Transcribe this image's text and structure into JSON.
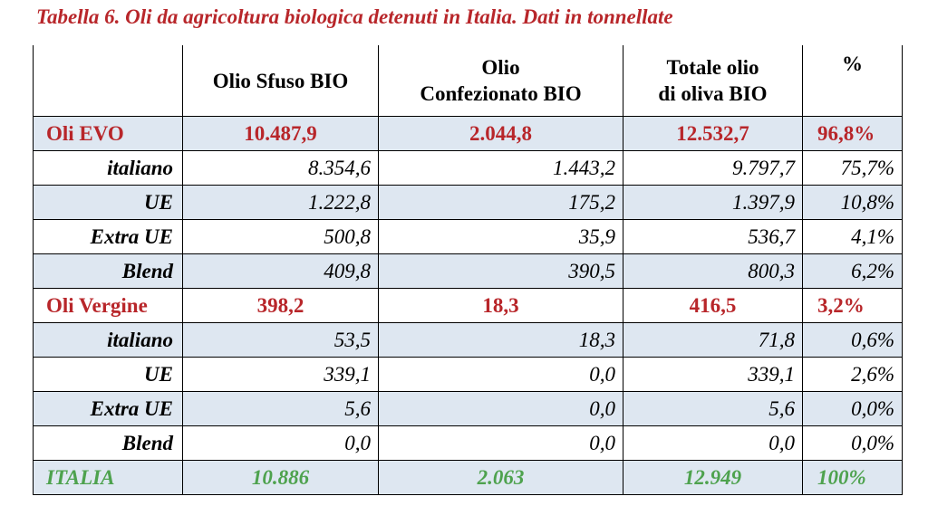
{
  "title": "Tabella 6. Oli da agricoltura biologica detenuti in Italia. Dati in tonnellate",
  "columns": {
    "c1": [
      "Olio Sfuso BIO"
    ],
    "c2": [
      "Olio",
      "Confezionato BIO"
    ],
    "c3": [
      "Totale olio",
      "di oliva BIO"
    ],
    "c4": [
      "%"
    ]
  },
  "rows": [
    {
      "kind": "group",
      "label": "Oli EVO",
      "sfuso": "10.487,9",
      "confezionato": "2.044,8",
      "totale": "12.532,7",
      "pct": "96,8%"
    },
    {
      "kind": "sub",
      "label": "italiano",
      "sfuso": "8.354,6",
      "confezionato": "1.443,2",
      "totale": "9.797,7",
      "pct": "75,7%"
    },
    {
      "kind": "sub",
      "label": "UE",
      "sfuso": "1.222,8",
      "confezionato": "175,2",
      "totale": "1.397,9",
      "pct": "10,8%"
    },
    {
      "kind": "sub",
      "label": "Extra UE",
      "sfuso": "500,8",
      "confezionato": "35,9",
      "totale": "536,7",
      "pct": "4,1%"
    },
    {
      "kind": "sub",
      "label": "Blend",
      "sfuso": "409,8",
      "confezionato": "390,5",
      "totale": "800,3",
      "pct": "6,2%"
    },
    {
      "kind": "group",
      "label": "Oli Vergine",
      "sfuso": "398,2",
      "confezionato": "18,3",
      "totale": "416,5",
      "pct": "3,2%"
    },
    {
      "kind": "sub",
      "label": "italiano",
      "sfuso": "53,5",
      "confezionato": "18,3",
      "totale": "71,8",
      "pct": "0,6%"
    },
    {
      "kind": "sub",
      "label": "UE",
      "sfuso": "339,1",
      "confezionato": "0,0",
      "totale": "339,1",
      "pct": "2,6%"
    },
    {
      "kind": "sub",
      "label": "Extra UE",
      "sfuso": "5,6",
      "confezionato": "0,0",
      "totale": "5,6",
      "pct": "0,0%"
    },
    {
      "kind": "sub",
      "label": "Blend",
      "sfuso": "0,0",
      "confezionato": "0,0",
      "totale": "0,0",
      "pct": "0,0%"
    },
    {
      "kind": "total",
      "label": "ITALIA",
      "sfuso": "10.886",
      "confezionato": "2.063",
      "totale": "12.949",
      "pct": "100%"
    }
  ]
}
